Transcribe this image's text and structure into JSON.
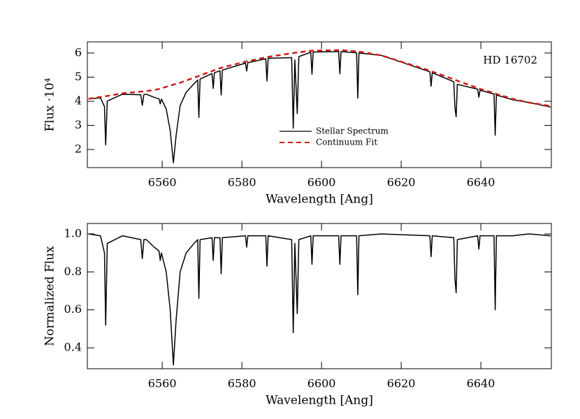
{
  "chart_data": [
    {
      "type": "line",
      "annotation": "HD 16702",
      "xlabel": "Wavelength [Ang]",
      "ylabel": "Flux ·10⁴",
      "xlim": [
        6541.2,
        6657.7
      ],
      "xticks": [
        6560,
        6580,
        6600,
        6620,
        6640
      ],
      "ylim": [
        1.25,
        6.46
      ],
      "yticks": [
        2,
        3,
        4,
        5,
        6
      ],
      "x": [
        6541.5,
        6544.5,
        6545.5,
        6545.8,
        6546.2,
        6550,
        6554.6,
        6555,
        6555.4,
        6556,
        6558,
        6559.2,
        6559.5,
        6559.8,
        6561,
        6562,
        6562.8,
        6563.5,
        6564.5,
        6566,
        6568,
        6568.9,
        6569.2,
        6569.5,
        6572.5,
        6572.8,
        6573.1,
        6574.5,
        6574.8,
        6575.1,
        6580.9,
        6581.2,
        6581.5,
        6586,
        6586.3,
        6586.6,
        6592.5,
        6592.9,
        6593.3,
        6593.9,
        6594.3,
        6597.3,
        6597.6,
        6597.9,
        6604.3,
        6604.6,
        6604.9,
        6608.8,
        6609.1,
        6609.4,
        6615,
        6627.2,
        6627.5,
        6627.8,
        6633.2,
        6633.5,
        6633.8,
        6634.1,
        6639.2,
        6639.5,
        6639.8,
        6643.3,
        6643.6,
        6643.9,
        6648,
        6652,
        6657.5
      ],
      "series": [
        {
          "name": "Stellar Spectrum",
          "color": "#000000",
          "line_style": "solid",
          "values": [
            4.1,
            4.14,
            3.78,
            2.19,
            4.01,
            4.29,
            4.27,
            3.83,
            4.28,
            4.29,
            4.16,
            4.1,
            3.89,
            4.09,
            3.68,
            2.79,
            1.45,
            2.6,
            3.82,
            4.37,
            4.73,
            4.88,
            3.33,
            4.92,
            5.15,
            4.53,
            5.18,
            5.26,
            4.26,
            5.29,
            5.58,
            5.25,
            5.6,
            5.76,
            4.84,
            5.78,
            5.81,
            2.88,
            5.71,
            3.49,
            5.85,
            6.03,
            5.12,
            6.04,
            6.06,
            5.14,
            6.06,
            6.01,
            4.13,
            6.0,
            5.9,
            5.22,
            4.62,
            5.18,
            4.81,
            3.72,
            3.36,
            4.7,
            4.5,
            4.17,
            4.46,
            4.3,
            2.59,
            4.26,
            4.06,
            3.95,
            3.76
          ]
        },
        {
          "name": "Continuum Fit",
          "color": "#d01c1c",
          "line_style": "dashed",
          "values": [
            4.1,
            4.18,
            4.2,
            4.21,
            4.22,
            4.33,
            4.4,
            4.4,
            4.41,
            4.42,
            4.47,
            4.51,
            4.52,
            4.54,
            4.6,
            4.65,
            4.69,
            4.72,
            4.77,
            4.86,
            4.98,
            5.03,
            5.05,
            5.07,
            5.25,
            5.27,
            5.29,
            5.37,
            5.39,
            5.4,
            5.64,
            5.65,
            5.66,
            5.82,
            5.83,
            5.84,
            5.99,
            6.0,
            6.01,
            6.02,
            6.03,
            6.09,
            6.09,
            6.1,
            6.12,
            6.12,
            6.12,
            6.07,
            6.07,
            6.06,
            5.9,
            5.27,
            5.25,
            5.23,
            4.91,
            4.89,
            4.87,
            4.85,
            4.55,
            4.53,
            4.51,
            4.34,
            4.32,
            4.3,
            4.1,
            3.95,
            3.8
          ]
        }
      ]
    },
    {
      "type": "line",
      "xlabel": "Wavelength [Ang]",
      "ylabel": "Normalized Flux",
      "xlim": [
        6541.2,
        6657.7
      ],
      "xticks": [
        6560,
        6580,
        6600,
        6620,
        6640
      ],
      "ylim": [
        0.29,
        1.055
      ],
      "yticks": [
        0.4,
        0.6,
        0.8,
        {
          "value": 1,
          "label": "1.0"
        }
      ],
      "x": [
        6541.5,
        6544.5,
        6545.5,
        6545.8,
        6546.2,
        6550,
        6554.6,
        6555,
        6555.4,
        6556,
        6558,
        6559.2,
        6559.5,
        6559.8,
        6561,
        6562,
        6562.8,
        6563.5,
        6564.5,
        6566,
        6568,
        6568.9,
        6569.2,
        6569.5,
        6572.5,
        6572.8,
        6573.1,
        6574.5,
        6574.8,
        6575.1,
        6580.9,
        6581.2,
        6581.5,
        6586,
        6586.3,
        6586.6,
        6592.5,
        6592.9,
        6593.3,
        6593.9,
        6594.3,
        6597.3,
        6597.6,
        6597.9,
        6604.3,
        6604.6,
        6604.9,
        6608.8,
        6609.1,
        6609.4,
        6615,
        6627.2,
        6627.5,
        6627.8,
        6633.2,
        6633.5,
        6633.8,
        6634.1,
        6639.2,
        6639.5,
        6639.8,
        6643.3,
        6643.6,
        6643.9,
        6648,
        6652,
        6657.5
      ],
      "series": [
        {
          "color": "#000000",
          "line_style": "solid",
          "values": [
            1.0,
            0.99,
            0.9,
            0.52,
            0.95,
            0.99,
            0.97,
            0.87,
            0.97,
            0.97,
            0.93,
            0.91,
            0.86,
            0.9,
            0.8,
            0.6,
            0.31,
            0.55,
            0.8,
            0.9,
            0.95,
            0.97,
            0.66,
            0.97,
            0.98,
            0.86,
            0.98,
            0.98,
            0.79,
            0.98,
            0.99,
            0.93,
            0.99,
            0.99,
            0.83,
            0.99,
            0.97,
            0.48,
            0.95,
            0.58,
            0.97,
            0.99,
            0.84,
            0.99,
            0.99,
            0.84,
            0.99,
            0.99,
            0.68,
            0.99,
            1.0,
            0.99,
            0.88,
            0.99,
            0.98,
            0.76,
            0.69,
            0.97,
            0.99,
            0.92,
            0.99,
            0.99,
            0.6,
            0.99,
            0.99,
            1.0,
            0.99
          ]
        }
      ]
    }
  ]
}
